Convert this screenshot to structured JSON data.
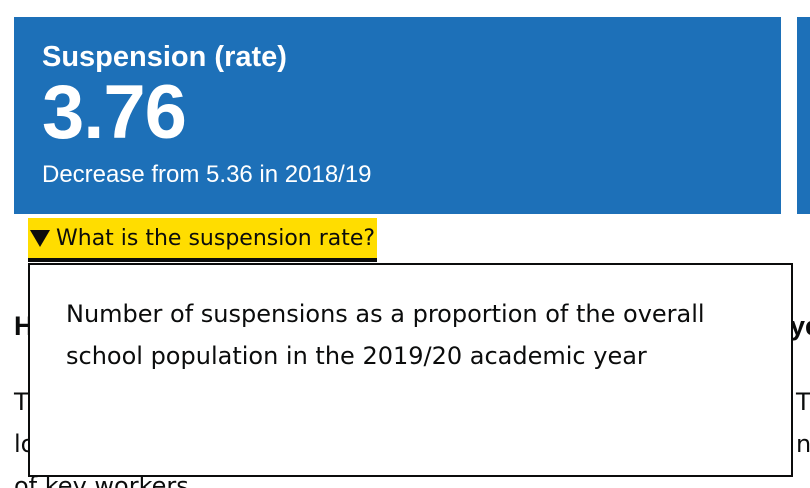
{
  "tile": {
    "title": "Suspension (rate)",
    "value": "3.76",
    "trend": "Decrease from 5.36 in 2018/19",
    "color": "#1d70b8"
  },
  "details": {
    "summary": "What is the suspension rate?",
    "body": "Number of suspensions as a proportion of the overall school population in the 2019/20 academic year",
    "focus_color": "#ffdd00",
    "icon": "triangle-down-icon"
  },
  "background": {
    "heading_left": "H",
    "heading_right": "ye",
    "para_left": [
      "T",
      "lo",
      "of key workers"
    ],
    "para_right": [
      "T",
      "no"
    ]
  }
}
